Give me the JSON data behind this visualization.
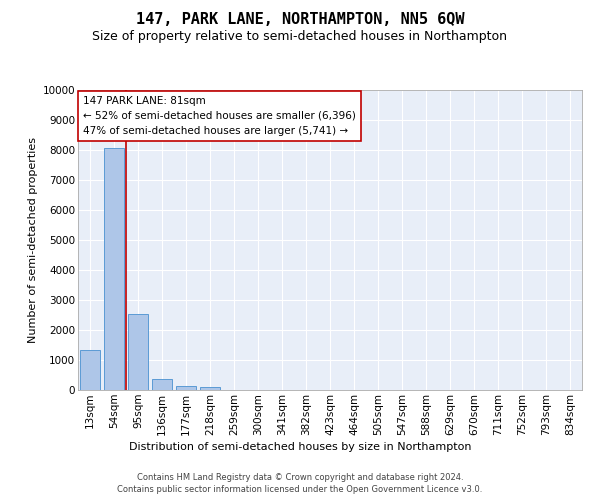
{
  "title": "147, PARK LANE, NORTHAMPTON, NN5 6QW",
  "subtitle": "Size of property relative to semi-detached houses in Northampton",
  "xlabel_bottom": "Distribution of semi-detached houses by size in Northampton",
  "ylabel": "Number of semi-detached properties",
  "footer_line1": "Contains HM Land Registry data © Crown copyright and database right 2024.",
  "footer_line2": "Contains public sector information licensed under the Open Government Licence v3.0.",
  "categories": [
    "13sqm",
    "54sqm",
    "95sqm",
    "136sqm",
    "177sqm",
    "218sqm",
    "259sqm",
    "300sqm",
    "341sqm",
    "382sqm",
    "423sqm",
    "464sqm",
    "505sqm",
    "547sqm",
    "588sqm",
    "629sqm",
    "670sqm",
    "711sqm",
    "752sqm",
    "793sqm",
    "834sqm"
  ],
  "bar_values": [
    1320,
    8050,
    2520,
    380,
    145,
    90,
    0,
    0,
    0,
    0,
    0,
    0,
    0,
    0,
    0,
    0,
    0,
    0,
    0,
    0,
    0
  ],
  "bar_color": "#aec6e8",
  "bar_edge_color": "#5b9bd5",
  "property_line_color": "#c00000",
  "annotation_text": "147 PARK LANE: 81sqm\n← 52% of semi-detached houses are smaller (6,396)\n47% of semi-detached houses are larger (5,741) →",
  "annotation_box_color": "#ffffff",
  "annotation_box_edge": "#c00000",
  "ylim": [
    0,
    10000
  ],
  "yticks": [
    0,
    1000,
    2000,
    3000,
    4000,
    5000,
    6000,
    7000,
    8000,
    9000,
    10000
  ],
  "background_color": "#e8eef8",
  "grid_color": "#ffffff",
  "fig_facecolor": "#ffffff",
  "title_fontsize": 11,
  "subtitle_fontsize": 9,
  "ylabel_fontsize": 8,
  "tick_fontsize": 7.5,
  "annotation_fontsize": 7.5,
  "footer_fontsize": 6
}
